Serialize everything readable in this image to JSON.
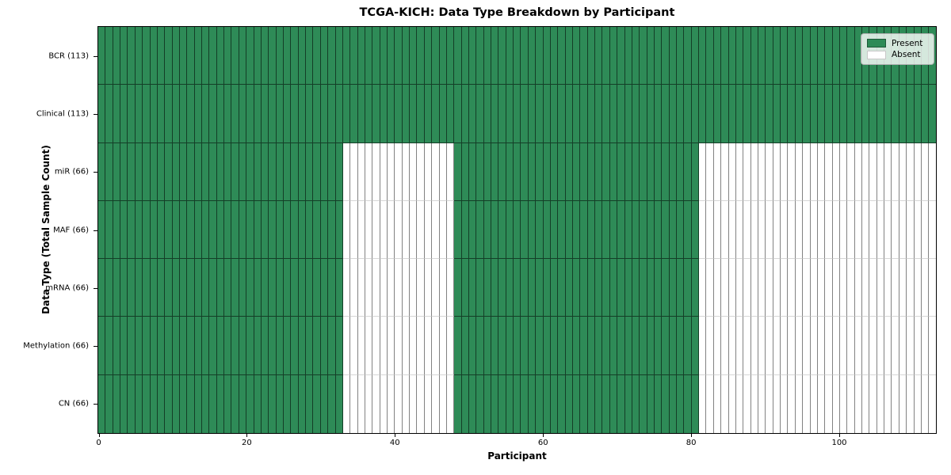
{
  "title": "TCGA-KICH: Data Type Breakdown by Participant",
  "colors": {
    "present": "#2e8b57",
    "absent": "#ffffff",
    "grid_on_green": "rgba(0,0,0,0.55)",
    "grid_on_white": "#828282",
    "spine": "#000000"
  },
  "legend": {
    "items": [
      {
        "label": "Present",
        "state": "present"
      },
      {
        "label": "Absent",
        "state": "absent"
      }
    ]
  },
  "chart_data": {
    "type": "heatmap",
    "title": "TCGA-KICH: Data Type Breakdown by Participant",
    "xlabel": "Participant",
    "ylabel": "Data Type (Total Sample Count)",
    "x_range": [
      0,
      113
    ],
    "n_participants": 113,
    "x_ticks": [
      0,
      20,
      40,
      60,
      80,
      100
    ],
    "grid": true,
    "legend_position": "upper right",
    "legend_entries": [
      "Present",
      "Absent"
    ],
    "rows": [
      {
        "data_type": "BCR",
        "label": "BCR (113)",
        "present_count": 113,
        "absent_count": 0,
        "present_ranges": [
          [
            0,
            112
          ]
        ]
      },
      {
        "data_type": "Clinical",
        "label": "Clinical (113)",
        "present_count": 113,
        "absent_count": 0,
        "present_ranges": [
          [
            0,
            112
          ]
        ]
      },
      {
        "data_type": "miR",
        "label": "miR (66)",
        "present_count": 66,
        "absent_count": 47,
        "present_ranges": [
          [
            0,
            32
          ],
          [
            48,
            80
          ]
        ]
      },
      {
        "data_type": "MAF",
        "label": "MAF (66)",
        "present_count": 66,
        "absent_count": 47,
        "present_ranges": [
          [
            0,
            32
          ],
          [
            48,
            80
          ]
        ]
      },
      {
        "data_type": "mRNA",
        "label": "mRNA (66)",
        "present_count": 66,
        "absent_count": 47,
        "present_ranges": [
          [
            0,
            32
          ],
          [
            48,
            80
          ]
        ]
      },
      {
        "data_type": "Methylation",
        "label": "Methylation (66)",
        "present_count": 66,
        "absent_count": 47,
        "present_ranges": [
          [
            0,
            32
          ],
          [
            48,
            80
          ]
        ]
      },
      {
        "data_type": "CN",
        "label": "CN (66)",
        "present_count": 66,
        "absent_count": 47,
        "present_ranges": [
          [
            0,
            32
          ],
          [
            48,
            80
          ]
        ]
      }
    ]
  }
}
